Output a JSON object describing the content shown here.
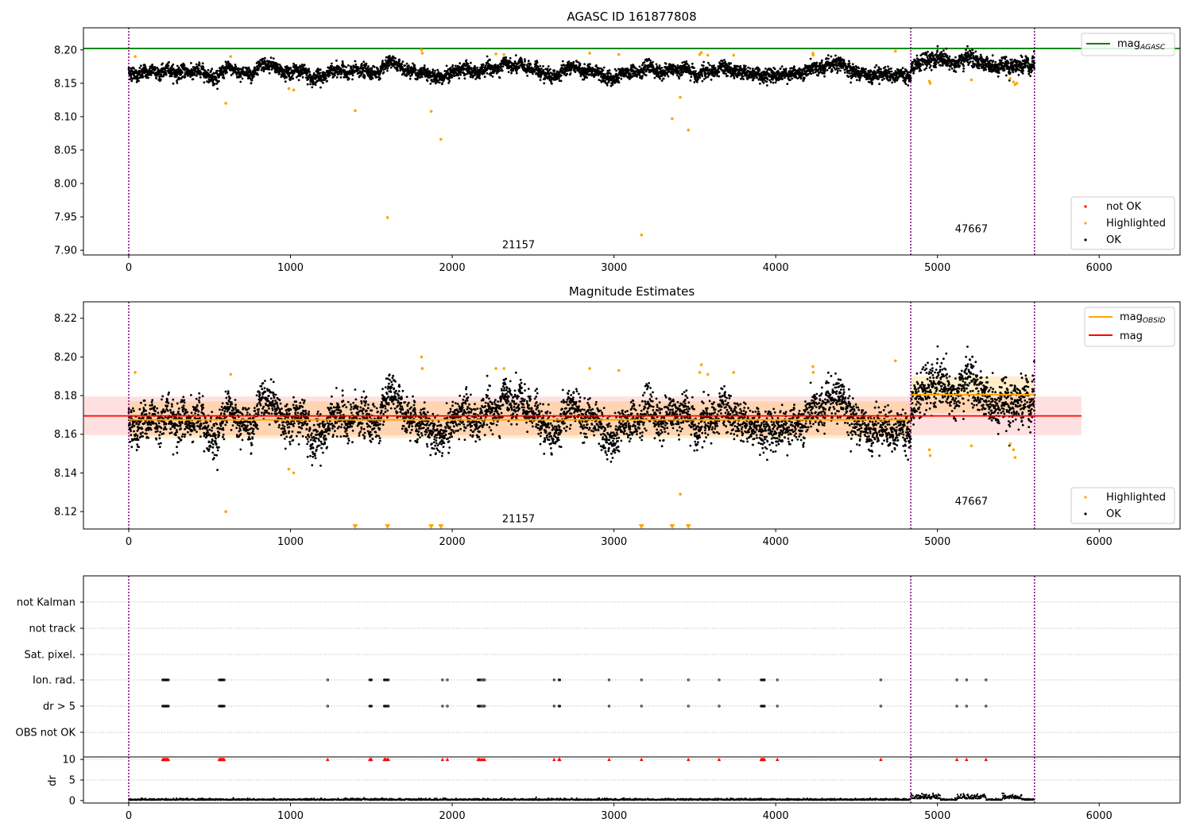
{
  "chart_data": [
    {
      "type": "scatter",
      "title": "AGASC ID 161877808",
      "xlim": [
        -280,
        6500
      ],
      "ylim": [
        7.893,
        8.233
      ],
      "xticks": [
        0,
        1000,
        2000,
        3000,
        4000,
        5000,
        6000
      ],
      "yticks": [
        "8.20",
        "8.15",
        "8.10",
        "8.05",
        "8.00",
        "7.95",
        "7.90"
      ],
      "grid": false,
      "vlines": [
        0,
        4835,
        5600
      ],
      "hline": {
        "name_base": "mag",
        "name_sub": "AGASC",
        "y": 8.202,
        "color": "#008000"
      },
      "obsid_labels": [
        {
          "text": "21157",
          "x": 2410,
          "y": 7.903
        },
        {
          "text": "47667",
          "x": 5210,
          "y": 7.927
        }
      ],
      "legend_top": {
        "placement": "top-right"
      },
      "legend_bottom": {
        "placement": "bottom-right",
        "entries": [
          {
            "name": "not OK",
            "color": "#ff0000"
          },
          {
            "name": "Highlighted",
            "color": "#ffa500"
          },
          {
            "name": "OK",
            "color": "#000000"
          }
        ]
      },
      "highlighted_points": [
        [
          40,
          8.19
        ],
        [
          600,
          8.12
        ],
        [
          630,
          8.19
        ],
        [
          990,
          8.142
        ],
        [
          1020,
          8.14
        ],
        [
          1400,
          8.109
        ],
        [
          1600,
          7.949
        ],
        [
          1810,
          8.2
        ],
        [
          1815,
          8.195
        ],
        [
          1870,
          8.108
        ],
        [
          1930,
          8.066
        ],
        [
          2270,
          8.194
        ],
        [
          2320,
          8.193
        ],
        [
          2850,
          8.195
        ],
        [
          3030,
          8.193
        ],
        [
          3170,
          7.923
        ],
        [
          3360,
          8.097
        ],
        [
          3410,
          8.129
        ],
        [
          3460,
          8.08
        ],
        [
          3530,
          8.193
        ],
        [
          3540,
          8.196
        ],
        [
          3580,
          8.192
        ],
        [
          3740,
          8.192
        ],
        [
          4230,
          8.195
        ],
        [
          4232,
          8.192
        ],
        [
          4740,
          8.198
        ],
        [
          4950,
          8.153
        ],
        [
          4955,
          8.15
        ],
        [
          5210,
          8.155
        ],
        [
          5450,
          8.157
        ],
        [
          5470,
          8.152
        ],
        [
          5480,
          8.148
        ],
        [
          5490,
          8.15
        ]
      ]
    },
    {
      "type": "scatter",
      "title": "Magnitude Estimates",
      "xlim": [
        -280,
        6500
      ],
      "ylim": [
        8.111,
        8.2285
      ],
      "xticks": [
        0,
        1000,
        2000,
        3000,
        4000,
        5000,
        6000
      ],
      "yticks": [
        "8.22",
        "8.20",
        "8.18",
        "8.16",
        "8.14",
        "8.12"
      ],
      "grid": false,
      "vlines": [
        0,
        4835,
        5600
      ],
      "mag": {
        "name": "mag",
        "y": 8.1695,
        "band": [
          8.1595,
          8.1795
        ],
        "x_range": [
          -280,
          5890
        ],
        "color": "#ff0000"
      },
      "mag_obsid": {
        "name_base": "mag",
        "name_sub": "OBSID",
        "color": "#ffa500",
        "segments": [
          {
            "x0": 0,
            "x1": 4835,
            "y": 8.1675,
            "band": [
              8.158,
              8.177
            ]
          },
          {
            "x0": 4835,
            "x1": 5600,
            "y": 8.1805,
            "band": [
              8.171,
              8.19
            ]
          }
        ]
      },
      "obsid_labels": [
        {
          "text": "21157",
          "x": 2410,
          "y": 8.1145
        },
        {
          "text": "47667",
          "x": 5210,
          "y": 8.1235
        }
      ],
      "legend_top": {
        "placement": "top-right"
      },
      "legend_bottom": {
        "placement": "bottom-right",
        "entries": [
          {
            "name": "Highlighted",
            "color": "#ffa500"
          },
          {
            "name": "OK",
            "color": "#000000"
          }
        ]
      },
      "highlighted_points": [
        [
          40,
          8.192
        ],
        [
          600,
          8.12
        ],
        [
          630,
          8.191
        ],
        [
          990,
          8.142
        ],
        [
          1020,
          8.14
        ],
        [
          1810,
          8.2
        ],
        [
          1815,
          8.194
        ],
        [
          2270,
          8.194
        ],
        [
          2320,
          8.194
        ],
        [
          2850,
          8.194
        ],
        [
          3030,
          8.193
        ],
        [
          3410,
          8.129
        ],
        [
          3530,
          8.192
        ],
        [
          3540,
          8.196
        ],
        [
          3580,
          8.191
        ],
        [
          3740,
          8.192
        ],
        [
          4230,
          8.195
        ],
        [
          4232,
          8.192
        ],
        [
          4740,
          8.198
        ],
        [
          4950,
          8.152
        ],
        [
          4955,
          8.149
        ],
        [
          5210,
          8.154
        ],
        [
          5450,
          8.155
        ],
        [
          5470,
          8.152
        ],
        [
          5480,
          8.148
        ]
      ],
      "clipped_markers_x": [
        1400,
        1600,
        1870,
        1930,
        3170,
        3360,
        3460
      ]
    },
    {
      "type": "scatter",
      "title": "",
      "xlim": [
        -280,
        6500
      ],
      "xticks": [
        0,
        1000,
        2000,
        3000,
        4000,
        5000,
        6000
      ],
      "vlines": [
        0,
        4835,
        5600
      ],
      "flag_rows": [
        "not Kalman",
        "not track",
        "Sat. pixel.",
        "Ion. rad.",
        "dr > 5",
        "OBS not OK"
      ],
      "flag_points_x": [
        210,
        215,
        220,
        225,
        230,
        235,
        240,
        245,
        560,
        565,
        570,
        575,
        580,
        585,
        590,
        1230,
        1490,
        1495,
        1500,
        1580,
        1585,
        1590,
        1600,
        1605,
        1940,
        1970,
        2160,
        2165,
        2170,
        2180,
        2190,
        2200,
        2630,
        2660,
        2665,
        2970,
        3170,
        3460,
        3650,
        3910,
        3915,
        3920,
        3925,
        3930,
        4010,
        4650,
        5120,
        5180,
        5300
      ],
      "dr_axis": {
        "ylabel": "dr",
        "ylim": [
          -0.6,
          10.6
        ],
        "yticks": [
          "0",
          "5",
          "10"
        ],
        "clip_value": 10
      },
      "dr_outliers_x": [
        5600
      ]
    }
  ]
}
